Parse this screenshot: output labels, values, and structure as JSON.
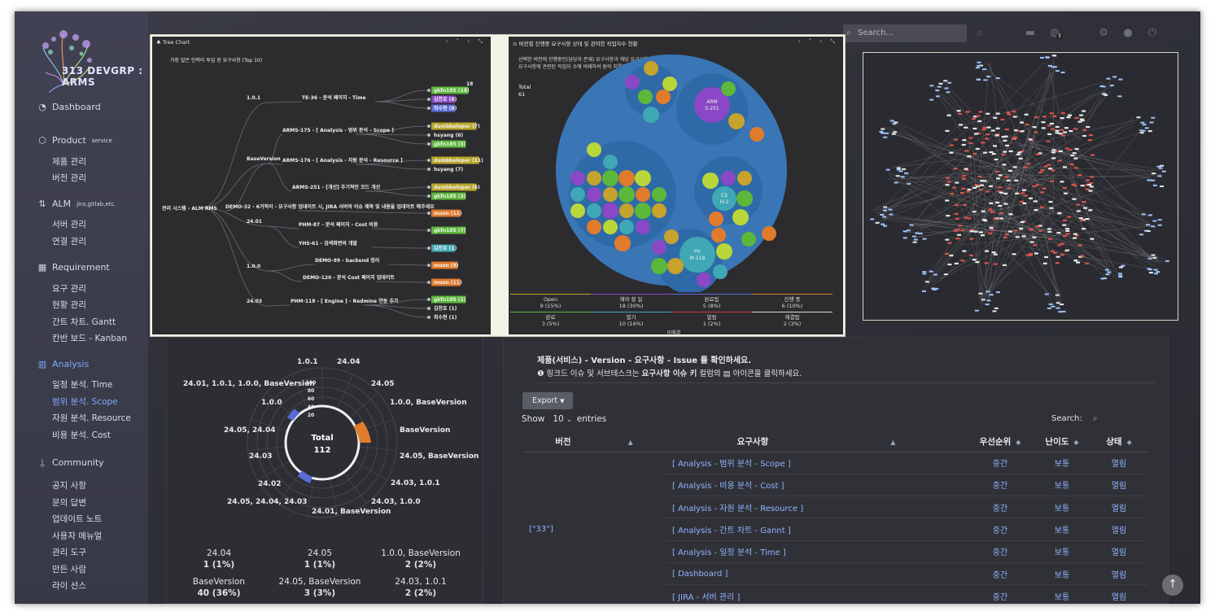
{
  "app": {
    "logo_text": "313 DEVGRP : ARMS"
  },
  "topbar": {
    "search_placeholder": "Search...",
    "badge": "3"
  },
  "sidebar": {
    "dashboard": "Dashboard",
    "product": "Product",
    "product_sup": "service",
    "product_items": [
      "제품 관리",
      "버전 관리"
    ],
    "alm": "ALM",
    "alm_sup": "jira,gitlab,etc.",
    "alm_items": [
      "서버 관리",
      "연결 관리"
    ],
    "requirement": "Requirement",
    "requirement_items": [
      "요구 관리",
      "현황 관리",
      "간트 차트. Gantt",
      "칸반 보드 - Kanban"
    ],
    "analysis": "Analysis",
    "analysis_items": [
      "일정 분석. Time",
      "범위 분석. Scope",
      "자원 분석. Resource",
      "비용 분석. Cost"
    ],
    "community": "Community",
    "community_items": [
      "공지 사항",
      "문의 답변",
      "업데이트 노트",
      "사용자 메뉴얼",
      "관리 도구",
      "만든 사람",
      "라이 선스"
    ]
  },
  "tree_chart": {
    "title": "Tree Chart",
    "subtitle": "가장 많은 인력이 투입 된 요구사항 (Top 10)",
    "top_count": "18",
    "root": "관리 시스템 - ALM RMS",
    "versions": [
      "1.0.1",
      "BaseVersion",
      "24.01",
      "1.0.0",
      "24.03"
    ],
    "requirements": [
      "TE-36 - 분석 페이지 - Time",
      "ARMS-175 - [ Analysis - 범위 분석 - Scope ]",
      "ARMS-176 - [ Analysis - 자원 분석 - Resource ]",
      "ARMS-251 - [개선] 주기적인 코드 개선",
      "DEMO-32 - 6거적이 - 요구사항 업데이트 시, JIRA 서버의 이슈 제목 및 내용을 업데이트 해주세요",
      "PHM-87 - 분석 페이지 - Cost 비용",
      "YHS-61 - 검색화면의 개발",
      "DEMO-99 - backend 정리",
      "DEMO-120 - 분석 Cost 페이지 업데이트",
      "PHM-118 - [ Engine ] - Redmine 연동 추가"
    ],
    "people": [
      {
        "name": "gkfn185 (18)",
        "color": "#5bb83a"
      },
      {
        "name": "김찬호 (8)",
        "color": "#8a48c6"
      },
      {
        "name": "최수현 (8)",
        "color": "#5a6bd6"
      },
      {
        "name": "dumbbeloper (7)",
        "color": "#b8a62a"
      },
      {
        "name": "hsyang (6)",
        "color": "#2c2c2f"
      },
      {
        "name": "gkfn185 (3)",
        "color": "#5bb83a"
      },
      {
        "name": "dumbbeloper (11)",
        "color": "#b8a62a"
      },
      {
        "name": "hsyang (7)",
        "color": "#2c2c2f"
      },
      {
        "name": "dumbbeloper (6)",
        "color": "#b8a62a"
      },
      {
        "name": "gkfn185 (3)",
        "color": "#5bb83a"
      },
      {
        "name": "moon (11)",
        "color": "#e07b2c"
      },
      {
        "name": "gkfn185 (7)",
        "color": "#5bb83a"
      },
      {
        "name": "김찬호 (1)",
        "color": "#3fa7b5"
      },
      {
        "name": "moon (9)",
        "color": "#e07b2c"
      },
      {
        "name": "moon (11)",
        "color": "#e07b2c"
      },
      {
        "name": "gkfn185 (2)",
        "color": "#5bb83a"
      },
      {
        "name": "김찬호 (1)",
        "color": "#2c2c2f"
      },
      {
        "name": "최수현 (1)",
        "color": "#2c2c2f"
      }
    ]
  },
  "bubble_chart": {
    "title": "버전별 진행중 요구사항 상태 및 관여한 작업자수 현황",
    "desc1": "선택한 버전에 진행중인(담당자 존재) 요구사항과 해당 요구사항의 진행 상태",
    "desc2": "요구사항에 관련된 작업자 수에 비례하여 원의 지름이 커집니다.",
    "total_label": "Total",
    "total_value": "61",
    "big_labels": [
      {
        "t": "ARM",
        "v": "S-251"
      },
      {
        "t": "CS",
        "v": "H-2"
      },
      {
        "t": "PH",
        "v": "M-118"
      }
    ],
    "legend": [
      {
        "label": "Open",
        "value": "9 (15%)",
        "color": "#c6a32c"
      },
      {
        "label": "해야 할 일",
        "value": "18 (30%)",
        "color": "#8a48c6"
      },
      {
        "label": "완료됨",
        "value": "5 (8%)",
        "color": "#5a6bd6"
      },
      {
        "label": "진행 중",
        "value": "6 (10%)",
        "color": "#e07b2c"
      },
      {
        "label": "완료",
        "value": "3 (5%)",
        "color": "#5bb83a"
      },
      {
        "label": "열기",
        "value": "10 (16%)",
        "color": "#3fa7b5"
      },
      {
        "label": "열림",
        "value": "1 (2%)",
        "color": "#c73a3a"
      },
      {
        "label": "해결됨",
        "value": "2 (3%)",
        "color": "#dddddd"
      }
    ],
    "footer": "미해결"
  },
  "donut": {
    "total_label": "Total",
    "total_value": "112",
    "ticks": [
      "100",
      "80",
      "60",
      "40",
      "20"
    ],
    "labels": [
      "1.0.1",
      "24.04",
      "24.05",
      "1.0.0, BaseVersion",
      "BaseVersion",
      "24.05, BaseVersion",
      "24.03, 1.0.1",
      "24.03, 1.0.0",
      "24.01, BaseVersion",
      "24.05, 24.04, 24.03",
      "24.02",
      "24.03",
      "24.05, 24.04",
      "1.0.0",
      "24.01, 1.0.1, 1.0.0, BaseVersion"
    ],
    "table": [
      {
        "label": "24.04",
        "value": "1 (1%)",
        "color": "#c73a3a"
      },
      {
        "label": "24.05",
        "value": "1 (1%)",
        "color": "#3fa7b5"
      },
      {
        "label": "1.0.0, BaseVersion",
        "value": "2 (2%)",
        "color": "#5bb83a"
      },
      {
        "label": "BaseVersion",
        "value": "40 (36%)",
        "color": "#e07b2c"
      },
      {
        "label": "24.05, BaseVersion",
        "value": "3 (3%)",
        "color": "#c6a32c"
      },
      {
        "label": "24.03, 1.0.1",
        "value": "2 (2%)",
        "color": "#8a48c6"
      }
    ]
  },
  "right": {
    "hint1": "제품(서비스) - Version - 요구사항 - Issue 를 확인하세요.",
    "hint2_pre": "링크드 이슈 및 서브테스크는 ",
    "hint2_bold": "요구사항 이슈 키",
    "hint2_post": " 컬럼의 ▤ 아이콘을 클릭하세요.",
    "export": "Export",
    "show": "Show",
    "show_value": "10",
    "entries": "entries",
    "search": "Search:",
    "columns": [
      "버전",
      "요구사항",
      "우선순위",
      "난이도",
      "상태"
    ],
    "version_cell": "[\"33\"]",
    "rows": [
      {
        "req": "[ Analysis - 범위 분석 - Scope ]",
        "pri": "중간",
        "diff": "보통",
        "status": "열림"
      },
      {
        "req": "[ Analysis - 비용 분석 - Cost ]",
        "pri": "중간",
        "diff": "보통",
        "status": "열림"
      },
      {
        "req": "[ Analysis - 자원 분석 - Resource ]",
        "pri": "중간",
        "diff": "보통",
        "status": "열림"
      },
      {
        "req": "[ Analysis - 간트 차트 - Gannt ]",
        "pri": "중간",
        "diff": "보통",
        "status": "열림"
      },
      {
        "req": "[ Analysis - 일정 분석 - Time ]",
        "pri": "중간",
        "diff": "보통",
        "status": "열림"
      },
      {
        "req": "[ Dashboard ]",
        "pri": "중간",
        "diff": "보통",
        "status": "열림"
      },
      {
        "req": "[ JIRA - 서버 관리 ]",
        "pri": "중간",
        "diff": "보통",
        "status": "열림"
      }
    ]
  }
}
